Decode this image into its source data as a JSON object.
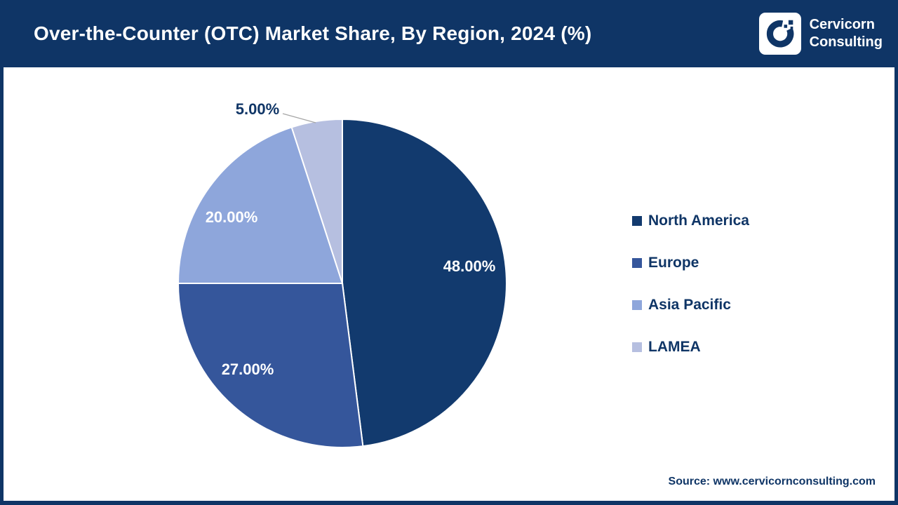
{
  "header": {
    "title": "Over-the-Counter (OTC) Market Share, By Region, 2024 (%)",
    "brand_line1": "Cervicorn",
    "brand_line2": "Consulting"
  },
  "theme": {
    "navy": "#0F3566",
    "leader_line_color": "#A6A6A6",
    "background": "#FFFFFF"
  },
  "chart_data": {
    "type": "pie",
    "title": "Over-the-Counter (OTC) Market Share, By Region, 2024 (%)",
    "categories": [
      "North America",
      "Europe",
      "Asia Pacific",
      "LAMEA"
    ],
    "values": [
      48,
      27,
      20,
      5
    ],
    "labels": [
      "48.00%",
      "27.00%",
      "20.00%",
      "5.00%"
    ],
    "colors": [
      "#123A6E",
      "#35569B",
      "#8EA6DB",
      "#B6BFE0"
    ],
    "start_angle": "top",
    "direction": "clockwise",
    "legend_position": "right",
    "slice_border_color": "#FFFFFF"
  },
  "source": {
    "text": "Source: www.cervicornconsulting.com"
  }
}
